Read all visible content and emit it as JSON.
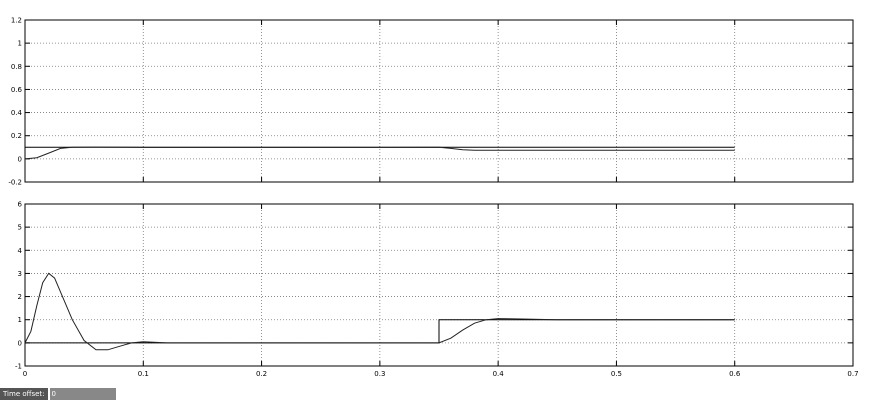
{
  "chart_data": [
    {
      "type": "line",
      "title": "",
      "xlabel": "",
      "ylabel": "",
      "xlim": [
        0,
        0.7
      ],
      "ylim": [
        -0.2,
        1.2
      ],
      "xticks": [
        "0",
        "0.1",
        "0.2",
        "0.3",
        "0.4",
        "0.5",
        "0.6",
        "0.7"
      ],
      "yticks": [
        "-0.2",
        "0",
        "0.2",
        "0.4",
        "0.6",
        "0.8",
        "1",
        "1.2"
      ],
      "grid": true,
      "series": [
        {
          "x": [
            0,
            0.6
          ],
          "y": [
            0.1,
            0.1
          ]
        },
        {
          "x": [
            0,
            0.01,
            0.02,
            0.03,
            0.04,
            0.06,
            0.1,
            0.35,
            0.36,
            0.37,
            0.38,
            0.6
          ],
          "y": [
            0,
            0.01,
            0.05,
            0.09,
            0.1,
            0.102,
            0.099,
            0.1,
            0.09,
            0.078,
            0.075,
            0.075
          ]
        }
      ]
    },
    {
      "type": "line",
      "title": "",
      "xlabel": "",
      "ylabel": "",
      "xlim": [
        0,
        0.7
      ],
      "ylim": [
        -1,
        6
      ],
      "xticks": [
        "0",
        "0.1",
        "0.2",
        "0.3",
        "0.4",
        "0.5",
        "0.6",
        "0.7"
      ],
      "yticks": [
        "-1",
        "0",
        "1",
        "2",
        "3",
        "4",
        "5",
        "6"
      ],
      "grid": true,
      "series": [
        {
          "x": [
            0,
            0.35,
            0.35,
            0.6
          ],
          "y": [
            0,
            0,
            1,
            1
          ]
        },
        {
          "x": [
            0,
            0.005,
            0.01,
            0.015,
            0.02,
            0.025,
            0.03,
            0.04,
            0.05,
            0.06,
            0.07,
            0.08,
            0.09,
            0.1,
            0.12,
            0.35,
            0.36,
            0.37,
            0.38,
            0.39,
            0.4,
            0.42,
            0.45,
            0.6
          ],
          "y": [
            0,
            0.5,
            1.6,
            2.6,
            3.0,
            2.8,
            2.2,
            1.0,
            0.1,
            -0.3,
            -0.3,
            -0.15,
            0,
            0.05,
            0,
            0,
            0.2,
            0.55,
            0.85,
            1.0,
            1.05,
            1.03,
            1.0,
            1.0
          ]
        }
      ]
    }
  ],
  "footer": {
    "time_offset_label": "Time offset:",
    "time_offset_value": "0"
  }
}
